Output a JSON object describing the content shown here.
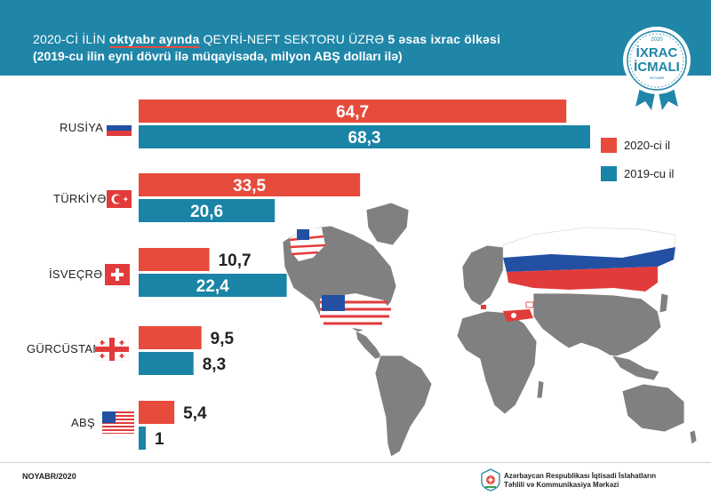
{
  "header": {
    "title_part1": "2020-Cİ İLİN ",
    "title_highlight": "oktyabr ayında",
    "title_part2": "  QEYRİ-NEFT SEKTORU ÜZRƏ ",
    "title_part3": "5 əsas ixrac ölkəsi",
    "subtitle": "(2019-cu ilin eyni dövrü ilə müqayisədə, milyon ABŞ dolları ilə)"
  },
  "badge": {
    "year": "2020",
    "line1": "İXRAC",
    "line2": "İCMALI",
    "month": "NOYABR"
  },
  "colors": {
    "header_bg": "#1f86a8",
    "series_2020": "#e64b3c",
    "series_2019": "#1a84a6",
    "map": "#808080"
  },
  "chart_data": {
    "type": "bar",
    "orientation": "horizontal",
    "categories": [
      "RUSİYA",
      "TÜRKİYƏ",
      "İSVEÇRƏ",
      "GÜRCÜSTAN",
      "ABŞ"
    ],
    "value_labels": {
      "2020": [
        "64,7",
        "33,5",
        "10,7",
        "9,5",
        "5,4"
      ],
      "2019": [
        "68,3",
        "20,6",
        "22,4",
        "8,3",
        "1"
      ]
    },
    "series": [
      {
        "name": "2020-ci il",
        "values": [
          64.7,
          33.5,
          10.7,
          9.5,
          5.4
        ]
      },
      {
        "name": "2019-cu il",
        "values": [
          68.3,
          20.6,
          22.4,
          8.3,
          1.0
        ]
      }
    ],
    "legend": "right"
  },
  "footer": {
    "date": "NOYABR/2020",
    "org_line1": "Azərbaycan Respublikası İqtisadi İslahatların",
    "org_line2": "Təhlili və Kommunikasiya Mərkəzi"
  }
}
